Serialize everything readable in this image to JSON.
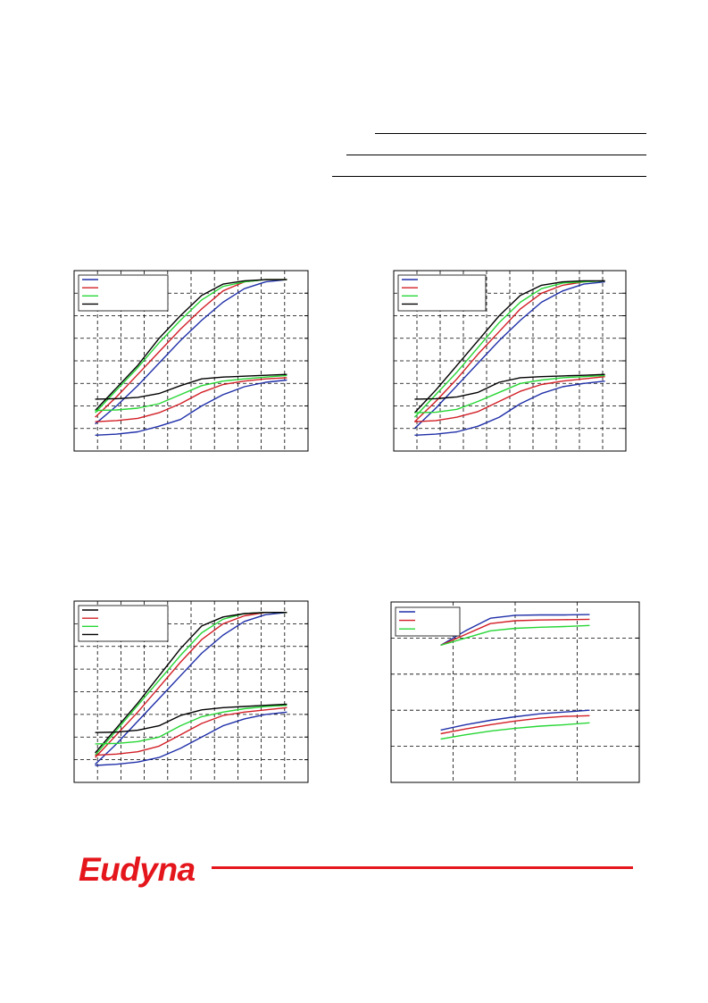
{
  "brand": {
    "logo_text": "Eudyna",
    "color": "#e4161c"
  },
  "colors": {
    "blue": "#1f2fa8",
    "red": "#d21f26",
    "green": "#27d635",
    "black": "#000000",
    "grid": "#000000"
  },
  "chart_data": [
    {
      "type": "line",
      "legend": {
        "placement": "top-left",
        "entries": [
          "",
          "",
          "",
          ""
        ],
        "colors": [
          "#1f2fa8",
          "#d21f26",
          "#27d635",
          "#000000"
        ]
      },
      "grid": true,
      "x_gridlines": 10,
      "y_gridlines": 8,
      "xlim": [
        0,
        10
      ],
      "ylim": [
        0,
        8
      ],
      "series": [
        {
          "color": "#1f2fa8",
          "x": [
            0,
            1,
            2,
            3,
            4,
            5,
            6,
            7,
            8,
            9
          ],
          "y": [
            1.2,
            2.0,
            2.9,
            3.9,
            4.9,
            5.8,
            6.6,
            7.2,
            7.5,
            7.6
          ]
        },
        {
          "color": "#d21f26",
          "x": [
            0,
            1,
            2,
            3,
            4,
            5,
            6,
            7,
            8,
            9
          ],
          "y": [
            1.5,
            2.4,
            3.4,
            4.4,
            5.4,
            6.3,
            7.1,
            7.5,
            7.6,
            7.6
          ]
        },
        {
          "color": "#27d635",
          "x": [
            0,
            1,
            2,
            3,
            4,
            5,
            6,
            7,
            8,
            9
          ],
          "y": [
            1.7,
            2.7,
            3.7,
            4.8,
            5.8,
            6.7,
            7.3,
            7.5,
            7.6,
            7.6
          ]
        },
        {
          "color": "#000000",
          "x": [
            0,
            1,
            2,
            3,
            4,
            5,
            6,
            7,
            8,
            9
          ],
          "y": [
            1.8,
            2.8,
            3.8,
            5.0,
            6.0,
            6.9,
            7.4,
            7.55,
            7.6,
            7.6
          ]
        },
        {
          "color": "#1f2fa8",
          "x": [
            0,
            1,
            2,
            3,
            4,
            5,
            6,
            7,
            8,
            9
          ],
          "y": [
            0.7,
            0.75,
            0.85,
            1.1,
            1.4,
            2.0,
            2.5,
            2.85,
            3.05,
            3.15
          ]
        },
        {
          "color": "#d21f26",
          "x": [
            0,
            1,
            2,
            3,
            4,
            5,
            6,
            7,
            8,
            9
          ],
          "y": [
            1.3,
            1.35,
            1.45,
            1.7,
            2.1,
            2.6,
            2.95,
            3.1,
            3.2,
            3.25
          ]
        },
        {
          "color": "#27d635",
          "x": [
            0,
            1,
            2,
            3,
            4,
            5,
            6,
            7,
            8,
            9
          ],
          "y": [
            1.8,
            1.82,
            1.9,
            2.1,
            2.5,
            2.9,
            3.1,
            3.2,
            3.28,
            3.35
          ]
        },
        {
          "color": "#000000",
          "x": [
            0,
            1,
            2,
            3,
            4,
            5,
            6,
            7,
            8,
            9
          ],
          "y": [
            2.3,
            2.32,
            2.38,
            2.55,
            2.9,
            3.2,
            3.28,
            3.32,
            3.36,
            3.4
          ]
        }
      ]
    },
    {
      "type": "line",
      "legend": {
        "placement": "top-left",
        "entries": [
          "",
          "",
          "",
          ""
        ],
        "colors": [
          "#1f2fa8",
          "#d21f26",
          "#27d635",
          "#000000"
        ]
      },
      "grid": true,
      "x_gridlines": 10,
      "y_gridlines": 8,
      "xlim": [
        0,
        10
      ],
      "ylim": [
        0,
        8
      ],
      "series": [
        {
          "color": "#1f2fa8",
          "x": [
            0,
            1,
            2,
            3,
            4,
            5,
            6,
            7,
            8,
            9
          ],
          "y": [
            1.0,
            1.9,
            2.9,
            3.9,
            4.9,
            5.8,
            6.6,
            7.1,
            7.4,
            7.5
          ]
        },
        {
          "color": "#d21f26",
          "x": [
            0,
            1,
            2,
            3,
            4,
            5,
            6,
            7,
            8,
            9
          ],
          "y": [
            1.3,
            2.2,
            3.2,
            4.3,
            5.3,
            6.3,
            7.0,
            7.35,
            7.5,
            7.55
          ]
        },
        {
          "color": "#27d635",
          "x": [
            0,
            1,
            2,
            3,
            4,
            5,
            6,
            7,
            8,
            9
          ],
          "y": [
            1.5,
            2.5,
            3.5,
            4.6,
            5.7,
            6.6,
            7.2,
            7.45,
            7.5,
            7.55
          ]
        },
        {
          "color": "#000000",
          "x": [
            0,
            1,
            2,
            3,
            4,
            5,
            6,
            7,
            8,
            9
          ],
          "y": [
            1.7,
            2.7,
            3.8,
            4.9,
            6.0,
            6.9,
            7.35,
            7.5,
            7.55,
            7.55
          ]
        },
        {
          "color": "#1f2fa8",
          "x": [
            0,
            1,
            2,
            3,
            4,
            5,
            6,
            7,
            8,
            9
          ],
          "y": [
            0.7,
            0.75,
            0.85,
            1.1,
            1.5,
            2.1,
            2.55,
            2.85,
            3.0,
            3.1
          ]
        },
        {
          "color": "#d21f26",
          "x": [
            0,
            1,
            2,
            3,
            4,
            5,
            6,
            7,
            8,
            9
          ],
          "y": [
            1.3,
            1.35,
            1.5,
            1.75,
            2.2,
            2.65,
            2.95,
            3.1,
            3.2,
            3.3
          ]
        },
        {
          "color": "#27d635",
          "x": [
            0,
            1,
            2,
            3,
            4,
            5,
            6,
            7,
            8,
            9
          ],
          "y": [
            1.7,
            1.72,
            1.85,
            2.2,
            2.6,
            3.0,
            3.15,
            3.25,
            3.3,
            3.35
          ]
        },
        {
          "color": "#000000",
          "x": [
            0,
            1,
            2,
            3,
            4,
            5,
            6,
            7,
            8,
            9
          ],
          "y": [
            2.3,
            2.32,
            2.4,
            2.6,
            3.05,
            3.25,
            3.3,
            3.33,
            3.36,
            3.4
          ]
        }
      ]
    },
    {
      "type": "line",
      "legend": {
        "placement": "top-left",
        "entries": [
          "",
          "",
          "",
          ""
        ],
        "colors": [
          "#000000",
          "#d21f26",
          "#27d635",
          "#000000"
        ]
      },
      "grid": true,
      "x_gridlines": 10,
      "y_gridlines": 8,
      "xlim": [
        0,
        10
      ],
      "ylim": [
        0,
        8
      ],
      "series": [
        {
          "color": "#1f2fa8",
          "x": [
            0,
            1,
            2,
            3,
            4,
            5,
            6,
            7,
            8,
            9
          ],
          "y": [
            0.8,
            1.7,
            2.7,
            3.7,
            4.7,
            5.7,
            6.5,
            7.1,
            7.4,
            7.5
          ]
        },
        {
          "color": "#d21f26",
          "x": [
            0,
            1,
            2,
            3,
            4,
            5,
            6,
            7,
            8,
            9
          ],
          "y": [
            1.1,
            2.1,
            3.1,
            4.2,
            5.3,
            6.3,
            7.0,
            7.35,
            7.5,
            7.5
          ]
        },
        {
          "color": "#27d635",
          "x": [
            0,
            1,
            2,
            3,
            4,
            5,
            6,
            7,
            8,
            9
          ],
          "y": [
            1.2,
            2.3,
            3.4,
            4.5,
            5.6,
            6.6,
            7.2,
            7.45,
            7.5,
            7.5
          ]
        },
        {
          "color": "#000000",
          "x": [
            0,
            1,
            2,
            3,
            4,
            5,
            6,
            7,
            8,
            9
          ],
          "y": [
            1.3,
            2.4,
            3.5,
            4.7,
            5.9,
            6.9,
            7.3,
            7.45,
            7.5,
            7.5
          ]
        },
        {
          "color": "#1f2fa8",
          "x": [
            0,
            1,
            2,
            3,
            4,
            5,
            6,
            7,
            8,
            9
          ],
          "y": [
            0.75,
            0.8,
            0.9,
            1.1,
            1.5,
            2.0,
            2.5,
            2.8,
            3.0,
            3.1
          ]
        },
        {
          "color": "#d21f26",
          "x": [
            0,
            1,
            2,
            3,
            4,
            5,
            6,
            7,
            8,
            9
          ],
          "y": [
            1.2,
            1.25,
            1.35,
            1.6,
            2.1,
            2.6,
            2.95,
            3.1,
            3.2,
            3.3
          ]
        },
        {
          "color": "#27d635",
          "x": [
            0,
            1,
            2,
            3,
            4,
            5,
            6,
            7,
            8,
            9
          ],
          "y": [
            1.7,
            1.72,
            1.8,
            2.0,
            2.5,
            2.9,
            3.1,
            3.25,
            3.35,
            3.4
          ]
        },
        {
          "color": "#000000",
          "x": [
            0,
            1,
            2,
            3,
            4,
            5,
            6,
            7,
            8,
            9
          ],
          "y": [
            2.2,
            2.22,
            2.3,
            2.5,
            2.95,
            3.2,
            3.3,
            3.35,
            3.4,
            3.45
          ]
        }
      ]
    },
    {
      "type": "line",
      "legend": {
        "placement": "top-left",
        "entries": [
          "",
          "",
          ""
        ],
        "colors": [
          "#1f2fa8",
          "#d21f26",
          "#27d635"
        ]
      },
      "grid": true,
      "x_gridlines": 4,
      "y_gridlines": 5,
      "xlim": [
        0,
        4
      ],
      "ylim": [
        0,
        5
      ],
      "series": [
        {
          "color": "#1f2fa8",
          "x": [
            0,
            0.5,
            1,
            1.5,
            2,
            2.5,
            3
          ],
          "y": [
            3.8,
            4.2,
            4.55,
            4.63,
            4.64,
            4.64,
            4.65
          ]
        },
        {
          "color": "#d21f26",
          "x": [
            0,
            0.5,
            1,
            1.5,
            2,
            2.5,
            3
          ],
          "y": [
            3.8,
            4.1,
            4.4,
            4.48,
            4.5,
            4.51,
            4.52
          ]
        },
        {
          "color": "#27d635",
          "x": [
            0,
            0.5,
            1,
            1.5,
            2,
            2.5,
            3
          ],
          "y": [
            3.8,
            4.0,
            4.2,
            4.27,
            4.3,
            4.32,
            4.35
          ]
        },
        {
          "color": "#1f2fa8",
          "x": [
            0,
            0.5,
            1,
            1.5,
            2,
            2.5,
            3
          ],
          "y": [
            1.45,
            1.6,
            1.72,
            1.82,
            1.9,
            1.95,
            2.0
          ]
        },
        {
          "color": "#d21f26",
          "x": [
            0,
            0.5,
            1,
            1.5,
            2,
            2.5,
            3
          ],
          "y": [
            1.35,
            1.48,
            1.6,
            1.7,
            1.78,
            1.83,
            1.85
          ]
        },
        {
          "color": "#27d635",
          "x": [
            0,
            0.5,
            1,
            1.5,
            2,
            2.5,
            3
          ],
          "y": [
            1.2,
            1.32,
            1.42,
            1.5,
            1.56,
            1.6,
            1.65
          ]
        }
      ]
    }
  ]
}
